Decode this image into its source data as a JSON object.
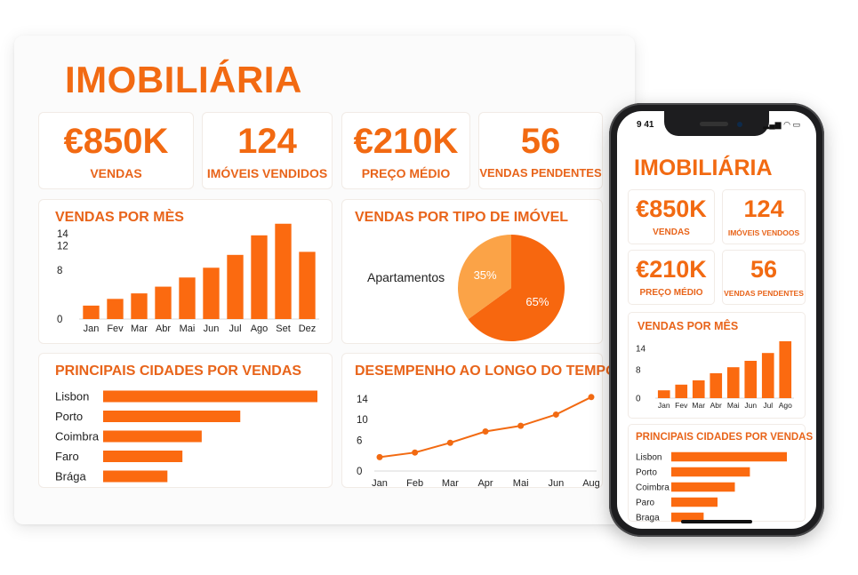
{
  "colors": {
    "accent": "#f26a12",
    "bar": "#fb6a10",
    "pie_light": "#fba347",
    "pie_dark": "#f7670f",
    "line": "#f26a12"
  },
  "desktop": {
    "title": "IMOBILIÁRIA",
    "kpis": [
      {
        "value": "€850K",
        "label": "VENDAS"
      },
      {
        "value": "124",
        "label": "IMÓVEIS VENDIDOS"
      },
      {
        "value": "€210K",
        "label": "PREÇO MÉDIO"
      },
      {
        "value": "56",
        "label": "VENDAS PENDENTES"
      }
    ],
    "charts": {
      "monthly": {
        "title": "VENDAS POR MÈS"
      },
      "property_type": {
        "title": "VENDAS POR TIPO DE IMÓVEL"
      },
      "cities": {
        "title": "PRINCIPAIS CIDADES POR VENDAS"
      },
      "performance": {
        "title": "DESEMPENHO AO LONGO DO TEMPO"
      }
    }
  },
  "mobile": {
    "status_time": "9 41",
    "title": "IMOBILIÁRIA",
    "kpis": [
      {
        "value": "€850K",
        "label": "VENDAS"
      },
      {
        "value": "124",
        "label": "IMÓVEIS VENDOOS"
      },
      {
        "value": "€210K",
        "label": "PREÇO MÉDIO"
      },
      {
        "value": "56",
        "label": "VENDAS PENDENTES"
      }
    ],
    "charts": {
      "monthly": {
        "title": "VENDAS POR MÊS"
      },
      "cities": {
        "title": "PRINCIPAIS CIDADES POR VENDAS"
      }
    }
  },
  "chart_data": [
    {
      "id": "desktop_monthly",
      "type": "bar",
      "title": "VENDAS POR MÈS",
      "categories": [
        "Jan",
        "Fev",
        "Mar",
        "Abr",
        "Mai",
        "Jun",
        "Jul",
        "Ago",
        "Set",
        "Dez"
      ],
      "values": [
        2.2,
        3.3,
        4.2,
        5.3,
        6.8,
        8.4,
        10.5,
        13.7,
        15.6,
        11.0
      ],
      "yticks": [
        "0",
        "8",
        "12",
        "14"
      ],
      "ylim": [
        0,
        16
      ],
      "xlabel": "",
      "ylabel": ""
    },
    {
      "id": "desktop_property_type",
      "type": "pie",
      "title": "VENDAS POR TIPO DE IMÓVEL",
      "slices": [
        {
          "label": "Apartamentos",
          "value": 35,
          "display": "35%"
        },
        {
          "label": "",
          "value": 65,
          "display": "65%"
        }
      ]
    },
    {
      "id": "desktop_cities",
      "type": "bar",
      "orientation": "horizontal",
      "title": "PRINCIPAIS CIDADES POR VENDAS",
      "categories": [
        "Lisbon",
        "Porto",
        "Coimbra",
        "Faro",
        "Brága"
      ],
      "values": [
        100,
        64,
        46,
        37,
        30
      ]
    },
    {
      "id": "desktop_performance",
      "type": "line",
      "title": "DESEMPENHO AO LONGO DO TEMPO",
      "x": [
        "Jan",
        "Feb",
        "Mar",
        "Apr",
        "Mai",
        "Jun",
        "Aug"
      ],
      "values": [
        2.7,
        3.6,
        5.5,
        7.7,
        8.8,
        11.0,
        14.4
      ],
      "yticks": [
        "0",
        "6",
        "10",
        "14"
      ],
      "ylim": [
        0,
        18
      ],
      "xlabel": "",
      "ylabel": ""
    },
    {
      "id": "mobile_monthly",
      "type": "bar",
      "title": "VENDAS POR MÊS",
      "categories": [
        "Jan",
        "Fev",
        "Mar",
        "Abr",
        "Mai",
        "Jun",
        "Jul",
        "Ago"
      ],
      "values": [
        2.2,
        3.8,
        5.0,
        7.0,
        8.7,
        10.5,
        12.7,
        16.0
      ],
      "yticks": [
        "0",
        "8",
        "14"
      ],
      "ylim": [
        0,
        17
      ],
      "xlabel": "",
      "ylabel": ""
    },
    {
      "id": "mobile_cities",
      "type": "bar",
      "orientation": "horizontal",
      "title": "PRINCIPAIS CIDADES POR VENDAS",
      "categories": [
        "Lisbon",
        "Porto",
        "Coimbra",
        "Paro",
        "Braga"
      ],
      "values": [
        100,
        68,
        55,
        40,
        28
      ]
    }
  ]
}
